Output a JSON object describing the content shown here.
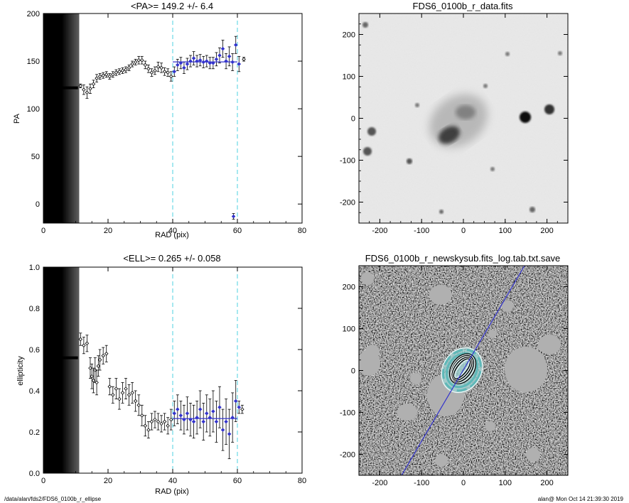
{
  "chart_data": [
    {
      "type": "scatter",
      "title": "<PA>= 149.2 +/-   6.4",
      "xlabel": "RAD (pix)",
      "ylabel": "PA",
      "xlim": [
        0,
        80
      ],
      "ylim": [
        -20,
        200
      ],
      "xticks": [
        0,
        20,
        40,
        60,
        80
      ],
      "yticks": [
        0,
        50,
        100,
        150,
        200
      ],
      "vlines": [
        40,
        60
      ],
      "fit": {
        "x_range": [
          40,
          60
        ],
        "value": 149.2
      },
      "masked_region": [
        0,
        11
      ],
      "masked_value": 122,
      "points": [
        {
          "x": 11.5,
          "y": 124,
          "err": 2
        },
        {
          "x": 12.5,
          "y": 120,
          "err": 5
        },
        {
          "x": 13.5,
          "y": 117,
          "err": 6
        },
        {
          "x": 14.5,
          "y": 121,
          "err": 5
        },
        {
          "x": 15.5,
          "y": 126,
          "err": 4
        },
        {
          "x": 16.5,
          "y": 132,
          "err": 4
        },
        {
          "x": 17.5,
          "y": 134,
          "err": 3
        },
        {
          "x": 18.5,
          "y": 135,
          "err": 3
        },
        {
          "x": 19.5,
          "y": 136,
          "err": 3
        },
        {
          "x": 20.5,
          "y": 134,
          "err": 3
        },
        {
          "x": 21.5,
          "y": 136,
          "err": 3
        },
        {
          "x": 22.5,
          "y": 138,
          "err": 3
        },
        {
          "x": 23.5,
          "y": 139,
          "err": 3
        },
        {
          "x": 24.5,
          "y": 140,
          "err": 3
        },
        {
          "x": 25.5,
          "y": 141,
          "err": 3
        },
        {
          "x": 26.5,
          "y": 143,
          "err": 3
        },
        {
          "x": 27.5,
          "y": 147,
          "err": 3
        },
        {
          "x": 28.5,
          "y": 149,
          "err": 3
        },
        {
          "x": 29.5,
          "y": 151,
          "err": 4
        },
        {
          "x": 30.5,
          "y": 151,
          "err": 4
        },
        {
          "x": 31.5,
          "y": 146,
          "err": 4
        },
        {
          "x": 32.5,
          "y": 142,
          "err": 4
        },
        {
          "x": 33.5,
          "y": 138,
          "err": 4
        },
        {
          "x": 34.5,
          "y": 140,
          "err": 4
        },
        {
          "x": 35.5,
          "y": 144,
          "err": 5
        },
        {
          "x": 36.5,
          "y": 143,
          "err": 5
        },
        {
          "x": 37.5,
          "y": 139,
          "err": 4
        },
        {
          "x": 38.5,
          "y": 138,
          "err": 4
        },
        {
          "x": 39.5,
          "y": 134,
          "err": 5
        },
        {
          "x": 40.5,
          "y": 139,
          "err": 5
        },
        {
          "x": 41.5,
          "y": 146,
          "err": 6
        },
        {
          "x": 42.5,
          "y": 148,
          "err": 6
        },
        {
          "x": 43.5,
          "y": 143,
          "err": 6
        },
        {
          "x": 44.5,
          "y": 147,
          "err": 6
        },
        {
          "x": 45.5,
          "y": 150,
          "err": 6
        },
        {
          "x": 46.5,
          "y": 153,
          "err": 7
        },
        {
          "x": 47.5,
          "y": 150,
          "err": 6
        },
        {
          "x": 48.5,
          "y": 151,
          "err": 6
        },
        {
          "x": 49.5,
          "y": 149,
          "err": 6
        },
        {
          "x": 50.5,
          "y": 150,
          "err": 6
        },
        {
          "x": 51.5,
          "y": 148,
          "err": 6
        },
        {
          "x": 52.5,
          "y": 148,
          "err": 6
        },
        {
          "x": 53.5,
          "y": 152,
          "err": 7
        },
        {
          "x": 54.5,
          "y": 156,
          "err": 8
        },
        {
          "x": 55.5,
          "y": 163,
          "err": 9
        },
        {
          "x": 56.5,
          "y": 150,
          "err": 8
        },
        {
          "x": 57.5,
          "y": 155,
          "err": 10
        },
        {
          "x": 58.5,
          "y": 149,
          "err": 9
        },
        {
          "x": 59.5,
          "y": 167,
          "err": 9
        },
        {
          "x": 60.5,
          "y": 147,
          "err": 8
        },
        {
          "x": 62.0,
          "y": 152,
          "err": 2
        },
        {
          "x": 58.8,
          "y": -13,
          "err": 3
        }
      ]
    },
    {
      "type": "scatter",
      "title": "<ELL>= 0.265 +/-  0.058",
      "xlabel": "RAD (pix)",
      "ylabel": "ellipticity",
      "xlim": [
        0,
        80
      ],
      "ylim": [
        0.0,
        1.0
      ],
      "xticks": [
        0,
        20,
        40,
        60,
        80
      ],
      "yticks": [
        0.0,
        0.2,
        0.4,
        0.6,
        0.8,
        1.0
      ],
      "vlines": [
        40,
        60
      ],
      "fit": {
        "x_range": [
          40,
          60
        ],
        "value": 0.265
      },
      "masked_region": [
        0,
        11
      ],
      "masked_value": 0.56,
      "points": [
        {
          "x": 11.5,
          "y": 0.65,
          "err": 0.03
        },
        {
          "x": 12.5,
          "y": 0.62,
          "err": 0.04
        },
        {
          "x": 13.5,
          "y": 0.63,
          "err": 0.04
        },
        {
          "x": 14.5,
          "y": 0.51,
          "err": 0.05
        },
        {
          "x": 15.0,
          "y": 0.47,
          "err": 0.06
        },
        {
          "x": 15.5,
          "y": 0.45,
          "err": 0.06
        },
        {
          "x": 16.0,
          "y": 0.5,
          "err": 0.06
        },
        {
          "x": 16.5,
          "y": 0.44,
          "err": 0.06
        },
        {
          "x": 17.0,
          "y": 0.52,
          "err": 0.05
        },
        {
          "x": 17.5,
          "y": 0.55,
          "err": 0.05
        },
        {
          "x": 18.5,
          "y": 0.57,
          "err": 0.04
        },
        {
          "x": 19.5,
          "y": 0.58,
          "err": 0.04
        },
        {
          "x": 20.5,
          "y": 0.42,
          "err": 0.04
        },
        {
          "x": 21.5,
          "y": 0.38,
          "err": 0.04
        },
        {
          "x": 22.5,
          "y": 0.41,
          "err": 0.05
        },
        {
          "x": 23.5,
          "y": 0.36,
          "err": 0.05
        },
        {
          "x": 24.5,
          "y": 0.39,
          "err": 0.05
        },
        {
          "x": 25.5,
          "y": 0.41,
          "err": 0.05
        },
        {
          "x": 26.5,
          "y": 0.38,
          "err": 0.05
        },
        {
          "x": 27.5,
          "y": 0.39,
          "err": 0.05
        },
        {
          "x": 28.5,
          "y": 0.35,
          "err": 0.05
        },
        {
          "x": 29.5,
          "y": 0.33,
          "err": 0.05
        },
        {
          "x": 30.5,
          "y": 0.28,
          "err": 0.05
        },
        {
          "x": 31.5,
          "y": 0.23,
          "err": 0.05
        },
        {
          "x": 32.5,
          "y": 0.21,
          "err": 0.04
        },
        {
          "x": 33.5,
          "y": 0.25,
          "err": 0.04
        },
        {
          "x": 34.5,
          "y": 0.26,
          "err": 0.04
        },
        {
          "x": 35.5,
          "y": 0.25,
          "err": 0.04
        },
        {
          "x": 36.5,
          "y": 0.24,
          "err": 0.04
        },
        {
          "x": 37.5,
          "y": 0.25,
          "err": 0.04
        },
        {
          "x": 38.5,
          "y": 0.23,
          "err": 0.04
        },
        {
          "x": 39.5,
          "y": 0.26,
          "err": 0.05
        },
        {
          "x": 40.5,
          "y": 0.29,
          "err": 0.06
        },
        {
          "x": 41.5,
          "y": 0.31,
          "err": 0.07
        },
        {
          "x": 42.5,
          "y": 0.28,
          "err": 0.07
        },
        {
          "x": 43.5,
          "y": 0.26,
          "err": 0.07
        },
        {
          "x": 44.5,
          "y": 0.29,
          "err": 0.08
        },
        {
          "x": 45.5,
          "y": 0.26,
          "err": 0.08
        },
        {
          "x": 46.5,
          "y": 0.25,
          "err": 0.08
        },
        {
          "x": 47.5,
          "y": 0.27,
          "err": 0.08
        },
        {
          "x": 48.5,
          "y": 0.31,
          "err": 0.09
        },
        {
          "x": 49.5,
          "y": 0.25,
          "err": 0.09
        },
        {
          "x": 50.5,
          "y": 0.29,
          "err": 0.09
        },
        {
          "x": 51.5,
          "y": 0.27,
          "err": 0.09
        },
        {
          "x": 52.5,
          "y": 0.3,
          "err": 0.1
        },
        {
          "x": 53.5,
          "y": 0.25,
          "err": 0.1
        },
        {
          "x": 54.5,
          "y": 0.32,
          "err": 0.1
        },
        {
          "x": 55.5,
          "y": 0.21,
          "err": 0.1
        },
        {
          "x": 56.5,
          "y": 0.25,
          "err": 0.11
        },
        {
          "x": 57.5,
          "y": 0.19,
          "err": 0.12
        },
        {
          "x": 58.5,
          "y": 0.27,
          "err": 0.12
        },
        {
          "x": 59.5,
          "y": 0.35,
          "err": 0.1
        },
        {
          "x": 60.5,
          "y": 0.32,
          "err": 0.03
        },
        {
          "x": 61.5,
          "y": 0.31,
          "err": 0.02
        }
      ]
    },
    {
      "type": "heatmap",
      "title": "FDS6_0100b_r_data.fits",
      "xlim": [
        -250,
        250
      ],
      "ylim": [
        -250,
        250
      ],
      "xticks": [
        -200,
        -100,
        0,
        100,
        200
      ],
      "yticks": [
        -200,
        -100,
        0,
        100,
        200
      ],
      "colormap": "inverted gray"
    },
    {
      "type": "heatmap",
      "title": "FDS6_0100b_r_newskysub.fits_log.tab.txt.save",
      "xlim": [
        -250,
        250
      ],
      "ylim": [
        -250,
        250
      ],
      "xticks": [
        -200,
        -100,
        0,
        100,
        200
      ],
      "yticks": [
        -200,
        -100,
        0,
        100,
        200
      ],
      "colormap": "gray",
      "overlay_line_color": "#3333cc",
      "contour_color": "#5fb8b8"
    }
  ],
  "footer": {
    "left": "/data/alan/fds2/FDS6_0100b_r_ellipse",
    "right": "alan@  Mon Oct 14 21:39:30 2019"
  },
  "colors": {
    "guide_line": "#4dd0e1",
    "fit_line": "#3333cc",
    "fit_points": "#3333cc"
  }
}
